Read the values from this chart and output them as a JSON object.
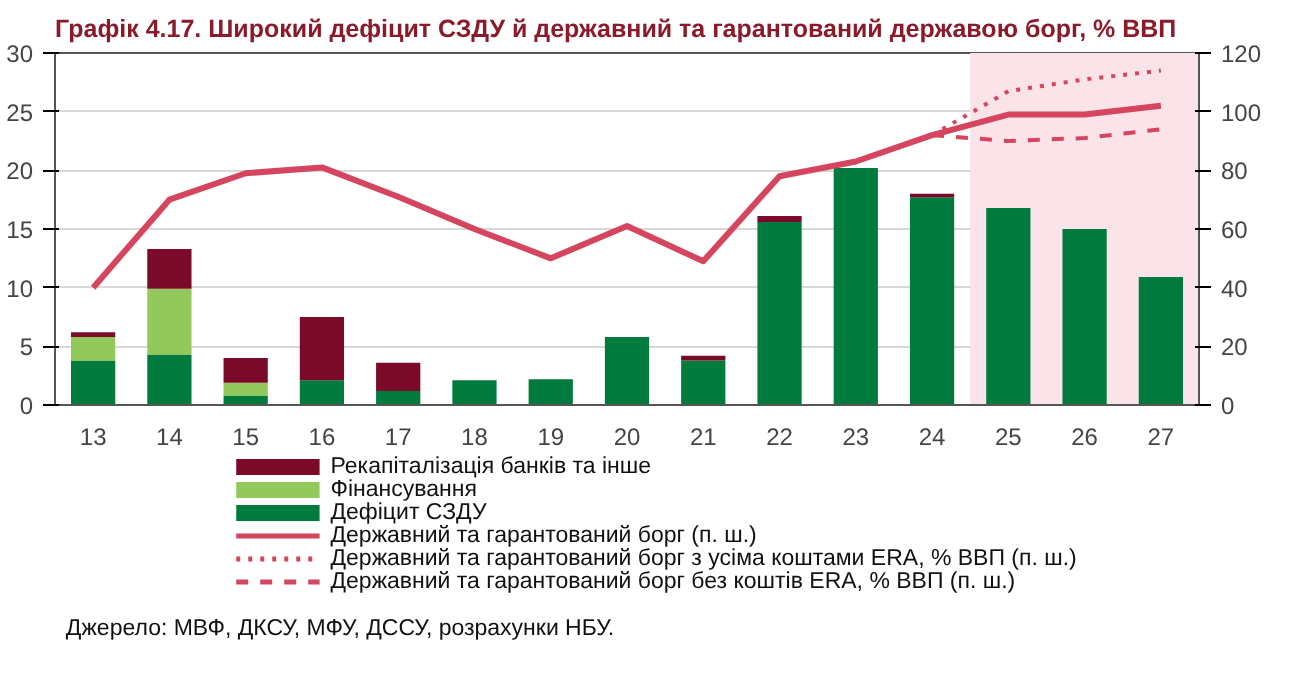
{
  "chart_data": {
    "type": "bar",
    "title": "Графік 4.17. Широкий дефіцит СЗДУ й державний та гарантований державою борг, % ВВП",
    "categories": [
      "13",
      "14",
      "15",
      "16",
      "17",
      "18",
      "19",
      "20",
      "21",
      "22",
      "23",
      "24",
      "25",
      "26",
      "27"
    ],
    "stacked": true,
    "series": [
      {
        "name": "Дефіцит СЗДУ",
        "color": "#007a3d",
        "values": [
          3.8,
          4.3,
          0.8,
          2.1,
          1.2,
          2.1,
          2.2,
          5.8,
          3.8,
          15.6,
          20.2,
          17.7,
          16.8,
          15.0,
          10.9
        ]
      },
      {
        "name": "Фінансування",
        "color": "#92c95a",
        "values": [
          2.0,
          5.6,
          1.1,
          null,
          null,
          null,
          null,
          null,
          null,
          null,
          null,
          null,
          null,
          null,
          null
        ]
      },
      {
        "name": "Рекапіталізація банків та інше",
        "color": "#7b0a2a",
        "values": [
          0.4,
          3.4,
          2.1,
          5.4,
          2.4,
          null,
          null,
          null,
          0.4,
          0.5,
          null,
          0.3,
          null,
          null,
          null
        ]
      },
      {
        "name": "Державний та гарантований борг (п. ш.)",
        "type": "line",
        "axis": "y2",
        "line_style": "solid",
        "color": "#d6455f",
        "values": [
          40,
          70,
          79,
          81,
          71,
          60,
          50,
          61,
          49,
          78,
          83,
          92,
          99,
          99,
          102
        ]
      },
      {
        "name": "Державний та гарантований борг з усіма коштами ERA, % ВВП (п. ш.)",
        "type": "line",
        "axis": "y2",
        "line_style": "dotted",
        "color": "#d6455f",
        "values": [
          null,
          null,
          null,
          null,
          null,
          null,
          null,
          null,
          null,
          null,
          null,
          92,
          107,
          111,
          114
        ]
      },
      {
        "name": "Державний та гарантований борг без коштів ERA, % ВВП (п. ш.)",
        "type": "line",
        "axis": "y2",
        "line_style": "dashed",
        "color": "#d6455f",
        "values": [
          null,
          null,
          null,
          null,
          null,
          null,
          null,
          null,
          null,
          null,
          null,
          92,
          90,
          91,
          94
        ]
      }
    ],
    "ylim": [
      0,
      30
    ],
    "yticks": [
      0,
      5,
      10,
      15,
      20,
      25,
      30
    ],
    "y2lim": [
      0,
      120
    ],
    "y2ticks": [
      0,
      20,
      40,
      60,
      80,
      100,
      120
    ],
    "bands": [
      {
        "axis": "x",
        "from": "25",
        "to": "27",
        "color": "#fbe3ea"
      }
    ],
    "grid": "y",
    "legend": "bottom",
    "annotations": [
      "Джерело: МВФ, ДКСУ, МФУ, ДССУ, розрахунки НБУ."
    ]
  }
}
